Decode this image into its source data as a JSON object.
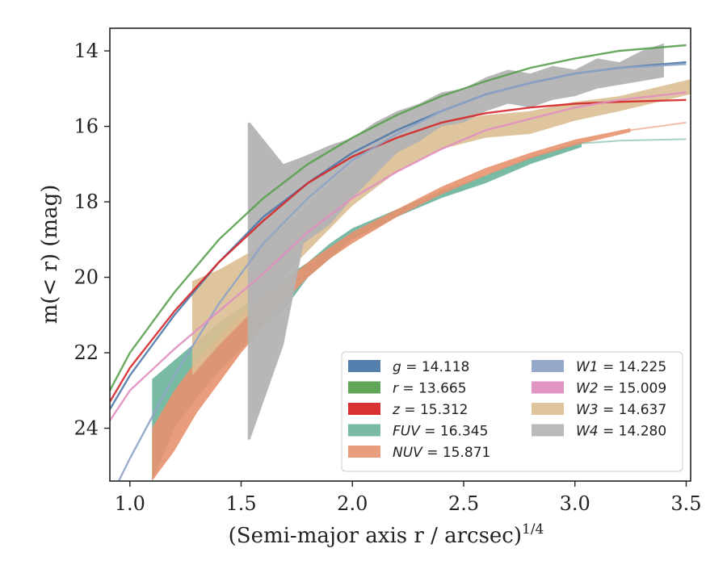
{
  "chart_data": {
    "type": "line",
    "xlabel": "(Semi-major axis r / arcsec)",
    "xlabel_exponent": "1/4",
    "ylabel": "m(< r) (mag)",
    "xlim": [
      0.91,
      3.52
    ],
    "ylim": [
      25.4,
      13.4
    ],
    "y_inverted": true,
    "grid": false,
    "legend_position": "lower-right",
    "x_ticks": [
      "1.0",
      "1.5",
      "2.0",
      "2.5",
      "3.0",
      "3.5"
    ],
    "y_ticks": [
      "14",
      "16",
      "18",
      "20",
      "22",
      "24"
    ],
    "series": [
      {
        "name": "g = 14.118",
        "label_italic": "g",
        "label_value": "= 14.118",
        "color": "#4c78a8",
        "kind": "line",
        "x": [
          0.91,
          1.0,
          1.2,
          1.4,
          1.6,
          1.8,
          2.0,
          2.2,
          2.4,
          2.6,
          2.8,
          3.0,
          3.2,
          3.5
        ],
        "y": [
          23.5,
          22.6,
          21.0,
          19.6,
          18.4,
          17.5,
          16.7,
          16.1,
          15.6,
          15.15,
          14.85,
          14.6,
          14.45,
          14.3
        ]
      },
      {
        "name": "r = 13.665",
        "label_italic": "r",
        "label_value": "= 13.665",
        "color": "#59a14f",
        "kind": "line",
        "x": [
          0.91,
          1.0,
          1.2,
          1.4,
          1.6,
          1.8,
          2.0,
          2.2,
          2.4,
          2.6,
          2.8,
          3.0,
          3.2,
          3.5
        ],
        "y": [
          23.0,
          22.0,
          20.4,
          19.0,
          17.9,
          17.0,
          16.3,
          15.7,
          15.2,
          14.8,
          14.45,
          14.2,
          14.0,
          13.85
        ]
      },
      {
        "name": "z = 15.312",
        "label_italic": "z",
        "label_value": "= 15.312",
        "color": "#d62728",
        "kind": "line",
        "x": [
          0.91,
          1.0,
          1.2,
          1.4,
          1.6,
          1.8,
          2.0,
          2.2,
          2.4,
          2.6,
          2.8,
          3.0,
          3.2,
          3.5
        ],
        "y": [
          23.3,
          22.4,
          20.9,
          19.6,
          18.5,
          17.5,
          16.8,
          16.3,
          15.9,
          15.65,
          15.5,
          15.4,
          15.35,
          15.3
        ]
      },
      {
        "name": "FUV = 16.345",
        "label_italic": "FUV",
        "label_value": "= 16.345",
        "color": "#6ab39b",
        "kind": "band",
        "x": [
          1.1,
          1.2,
          1.3,
          1.4,
          1.5,
          1.6,
          1.7,
          1.8,
          1.9,
          2.0,
          2.2,
          2.4,
          2.6,
          2.8,
          3.03
        ],
        "y_upper": [
          22.7,
          22.2,
          21.7,
          21.2,
          20.8,
          20.3,
          20.0,
          19.6,
          19.1,
          18.7,
          18.2,
          17.7,
          17.3,
          16.8,
          16.4
        ],
        "y_lower": [
          25.4,
          24.0,
          23.2,
          22.5,
          21.9,
          21.3,
          20.8,
          20.0,
          19.5,
          19.0,
          18.4,
          17.9,
          17.5,
          17.0,
          16.55
        ],
        "tail_x": [
          3.03,
          3.2,
          3.5
        ],
        "tail_y": [
          16.45,
          16.38,
          16.34
        ]
      },
      {
        "name": "NUV = 15.871",
        "label_italic": "NUV",
        "label_value": "= 15.871",
        "color": "#e8926f",
        "kind": "band",
        "x": [
          1.1,
          1.2,
          1.3,
          1.4,
          1.5,
          1.6,
          1.7,
          1.8,
          1.9,
          2.0,
          2.2,
          2.4,
          2.6,
          2.8,
          3.0,
          3.25
        ],
        "y_upper": [
          24.0,
          23.0,
          22.2,
          21.6,
          21.0,
          20.5,
          20.1,
          19.6,
          19.2,
          18.8,
          18.2,
          17.6,
          17.1,
          16.7,
          16.35,
          16.05
        ],
        "y_lower": [
          25.4,
          24.6,
          23.6,
          22.8,
          22.0,
          21.3,
          20.6,
          20.0,
          19.5,
          19.1,
          18.4,
          17.8,
          17.3,
          16.85,
          16.5,
          16.15
        ],
        "tail_x": [
          3.25,
          3.5
        ],
        "tail_y": [
          16.1,
          15.9
        ]
      },
      {
        "name": "W1 = 14.225",
        "label_italic": "W1",
        "label_value": "= 14.225",
        "color": "#8fa3c7",
        "kind": "line",
        "x": [
          0.95,
          1.0,
          1.2,
          1.4,
          1.6,
          1.8,
          2.0,
          2.2,
          2.4,
          2.6,
          2.8,
          3.0,
          3.2,
          3.5
        ],
        "y": [
          25.4,
          24.8,
          22.6,
          20.7,
          19.1,
          17.9,
          16.9,
          16.2,
          15.6,
          15.15,
          14.85,
          14.6,
          14.45,
          14.35
        ]
      },
      {
        "name": "W2 = 15.009",
        "label_italic": "W2",
        "label_value": "= 15.009",
        "color": "#e08fc0",
        "kind": "line",
        "x": [
          0.91,
          1.0,
          1.2,
          1.4,
          1.6,
          1.8,
          2.0,
          2.2,
          2.4,
          2.6,
          2.8,
          3.0,
          3.2,
          3.5
        ],
        "y": [
          23.8,
          23.0,
          21.9,
          20.9,
          19.9,
          18.8,
          17.9,
          17.2,
          16.6,
          16.1,
          15.8,
          15.5,
          15.3,
          15.1
        ]
      },
      {
        "name": "W3 = 14.637",
        "label_italic": "W3",
        "label_value": "= 14.637",
        "color": "#dcbf93",
        "kind": "band",
        "x": [
          1.28,
          1.4,
          1.55,
          1.7,
          1.85,
          2.0,
          2.2,
          2.4,
          2.6,
          2.8,
          3.0,
          3.2,
          3.52
        ],
        "y_upper": [
          20.1,
          19.8,
          19.3,
          18.6,
          17.8,
          17.0,
          16.3,
          15.9,
          15.7,
          15.6,
          15.35,
          15.2,
          14.75
        ],
        "y_lower": [
          22.6,
          21.8,
          20.9,
          19.9,
          19.0,
          18.1,
          17.2,
          16.6,
          16.3,
          16.2,
          15.85,
          15.6,
          15.15
        ]
      },
      {
        "name": "W4 = 14.280",
        "label_italic": "W4",
        "label_value": "= 14.280",
        "color": "#b3b3b3",
        "kind": "band",
        "x": [
          1.53,
          1.54,
          1.69,
          1.78,
          1.9,
          2.0,
          2.1,
          2.2,
          2.3,
          2.4,
          2.5,
          2.6,
          2.7,
          2.8,
          2.9,
          3.0,
          3.1,
          3.2,
          3.3,
          3.4
        ],
        "y_upper": [
          15.9,
          15.9,
          17.0,
          16.8,
          16.5,
          16.3,
          15.9,
          15.6,
          15.4,
          15.1,
          15.0,
          14.7,
          14.5,
          14.6,
          14.4,
          14.5,
          14.2,
          14.3,
          14.0,
          13.8
        ],
        "y_lower": [
          24.3,
          24.3,
          21.8,
          19.1,
          18.6,
          17.9,
          17.3,
          16.7,
          16.4,
          16.0,
          15.9,
          15.6,
          15.4,
          15.5,
          15.3,
          15.2,
          15.0,
          14.9,
          14.8,
          14.7
        ]
      }
    ]
  }
}
